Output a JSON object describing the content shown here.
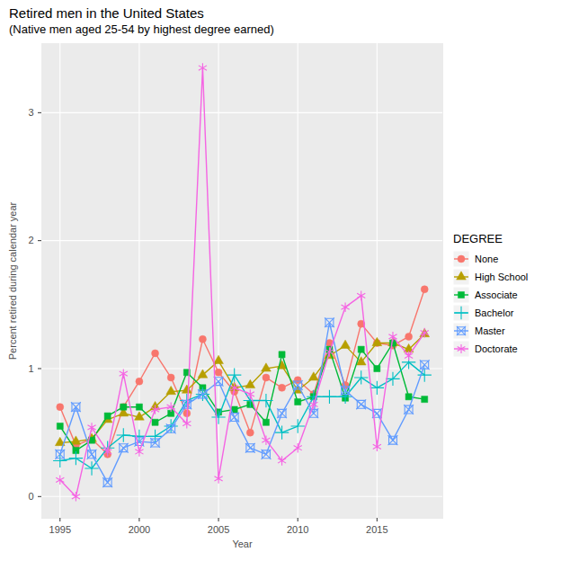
{
  "chart_data": {
    "type": "line",
    "title": "Retired men in the United States",
    "subtitle": "(Native men aged 25-54 by highest degree earned)",
    "x_label": "Year",
    "y_label": "Percent retired during calendar year",
    "legend_title": "DEGREE",
    "x": [
      1995,
      1996,
      1997,
      1998,
      1999,
      2000,
      2001,
      2002,
      2003,
      2004,
      2005,
      2006,
      2007,
      2008,
      2009,
      2010,
      2011,
      2012,
      2013,
      2014,
      2015,
      2016,
      2017,
      2018
    ],
    "series": [
      {
        "name": "None",
        "color": "#F8766D",
        "marker": "circle",
        "values": [
          0.7,
          0.4,
          0.45,
          0.33,
          0.7,
          0.9,
          1.12,
          0.93,
          0.65,
          1.23,
          0.97,
          0.82,
          0.5,
          0.93,
          0.85,
          0.91,
          0.8,
          1.2,
          0.87,
          1.35,
          1.2,
          1.18,
          1.25,
          1.62
        ]
      },
      {
        "name": "High School",
        "color": "#B79F00",
        "marker": "triangle",
        "values": [
          0.42,
          0.43,
          0.45,
          0.6,
          0.65,
          0.62,
          0.7,
          0.82,
          0.83,
          0.95,
          1.06,
          0.85,
          0.87,
          1.0,
          1.02,
          0.83,
          0.93,
          1.1,
          1.18,
          1.05,
          1.2,
          1.2,
          1.15,
          1.27
        ]
      },
      {
        "name": "Associate",
        "color": "#00BA38",
        "marker": "square",
        "values": [
          0.55,
          0.36,
          0.44,
          0.63,
          0.7,
          0.7,
          0.58,
          0.65,
          0.97,
          0.85,
          0.66,
          0.68,
          0.72,
          0.58,
          1.11,
          0.74,
          0.78,
          1.15,
          0.77,
          1.15,
          1.0,
          1.2,
          0.78,
          0.76
        ]
      },
      {
        "name": "Bachelor",
        "color": "#00BFC4",
        "marker": "plus",
        "values": [
          0.28,
          0.3,
          0.22,
          0.38,
          0.48,
          0.47,
          0.47,
          0.55,
          0.75,
          0.8,
          0.62,
          0.95,
          0.75,
          0.75,
          0.5,
          0.55,
          0.78,
          0.78,
          0.78,
          0.93,
          0.85,
          0.92,
          1.05,
          0.95
        ]
      },
      {
        "name": "Master",
        "color": "#619CFF",
        "marker": "square-x",
        "values": [
          0.33,
          0.7,
          0.33,
          0.11,
          0.38,
          0.43,
          0.42,
          0.53,
          0.72,
          0.8,
          0.9,
          0.62,
          0.38,
          0.33,
          0.65,
          0.87,
          0.65,
          1.36,
          0.83,
          0.72,
          0.65,
          0.44,
          0.68,
          1.03
        ]
      },
      {
        "name": "Doctorate",
        "color": "#F564E3",
        "marker": "asterisk",
        "values": [
          0.13,
          0.0,
          0.54,
          0.35,
          0.96,
          0.35,
          0.68,
          0.7,
          0.57,
          3.35,
          0.14,
          0.85,
          0.8,
          0.44,
          0.28,
          0.38,
          0.72,
          1.13,
          1.48,
          1.57,
          0.39,
          1.25,
          1.1,
          1.28
        ]
      }
    ],
    "xlim": [
      1993.85,
      2019.15
    ],
    "ylim": [
      -0.17,
      3.54
    ],
    "xticks": [
      1995,
      2000,
      2005,
      2010,
      2015
    ],
    "yticks": [
      0,
      1,
      2,
      3
    ],
    "grid": true,
    "legend": "right"
  }
}
